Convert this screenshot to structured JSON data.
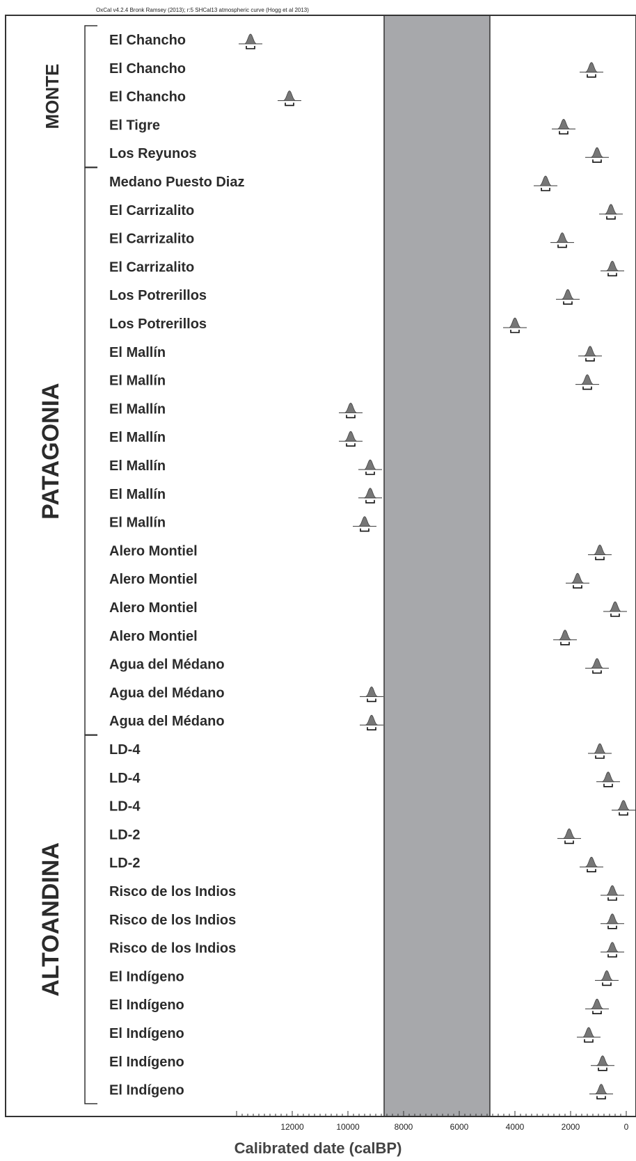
{
  "header": "OxCal v4.2.4 Bronk Ramsey (2013); r:5 SHCal13 atmospheric curve (Hogg et al 2013)",
  "chart_data": {
    "type": "multiplot",
    "xlabel": "Calibrated date (calBP)",
    "xlim": [
      14500,
      -400
    ],
    "xticks": [
      12000,
      10000,
      8000,
      6000,
      4000,
      2000,
      0
    ],
    "shaded_band": [
      8700,
      4900
    ],
    "groups": [
      {
        "name": "MONTE",
        "first": 0,
        "last": 4
      },
      {
        "name": "PATAGONIA",
        "first": 5,
        "last": 24
      },
      {
        "name": "ALTOANDINA",
        "first": 25,
        "last": 37
      }
    ],
    "rows": [
      {
        "label": "El Chancho",
        "median": 13500
      },
      {
        "label": "El Chancho",
        "median": 1250
      },
      {
        "label": "El Chancho",
        "median": 12100
      },
      {
        "label": "El Tigre",
        "median": 2250
      },
      {
        "label": "Los Reyunos",
        "median": 1050
      },
      {
        "label": "Medano Puesto Diaz",
        "median": 2900
      },
      {
        "label": "El Carrizalito",
        "median": 550
      },
      {
        "label": "El Carrizalito",
        "median": 2300
      },
      {
        "label": "El Carrizalito",
        "median": 500
      },
      {
        "label": "Los Potrerillos",
        "median": 2100
      },
      {
        "label": "Los Potrerillos",
        "median": 4000
      },
      {
        "label": "El Mallín",
        "median": 1300
      },
      {
        "label": "El Mallín",
        "median": 1400
      },
      {
        "label": "El Mallín",
        "median": 9900
      },
      {
        "label": "El Mallín",
        "median": 9900
      },
      {
        "label": "El Mallín",
        "median": 9200
      },
      {
        "label": "El Mallín",
        "median": 9200
      },
      {
        "label": "El Mallín",
        "median": 9400
      },
      {
        "label": "Alero Montiel",
        "median": 950
      },
      {
        "label": "Alero Montiel",
        "median": 1750
      },
      {
        "label": "Alero Montiel",
        "median": 400
      },
      {
        "label": "Alero Montiel",
        "median": 2200
      },
      {
        "label": "Agua del Médano",
        "median": 1050
      },
      {
        "label": "Agua del Médano",
        "median": 9150
      },
      {
        "label": "Agua del Médano",
        "median": 9150
      },
      {
        "label": "LD-4",
        "median": 950
      },
      {
        "label": "LD-4",
        "median": 650
      },
      {
        "label": "LD-4",
        "median": 100
      },
      {
        "label": "LD-2",
        "median": 2050
      },
      {
        "label": "LD-2",
        "median": 1250
      },
      {
        "label": "Risco de los Indios",
        "median": 500
      },
      {
        "label": "Risco de los Indios",
        "median": 500
      },
      {
        "label": "Risco de los Indios",
        "median": 500
      },
      {
        "label": "El Indígeno",
        "median": 700
      },
      {
        "label": "El Indígeno",
        "median": 1050
      },
      {
        "label": "El Indígeno",
        "median": 1350
      },
      {
        "label": "El Indígeno",
        "median": 850
      },
      {
        "label": "El Indígeno",
        "median": 900
      }
    ]
  }
}
